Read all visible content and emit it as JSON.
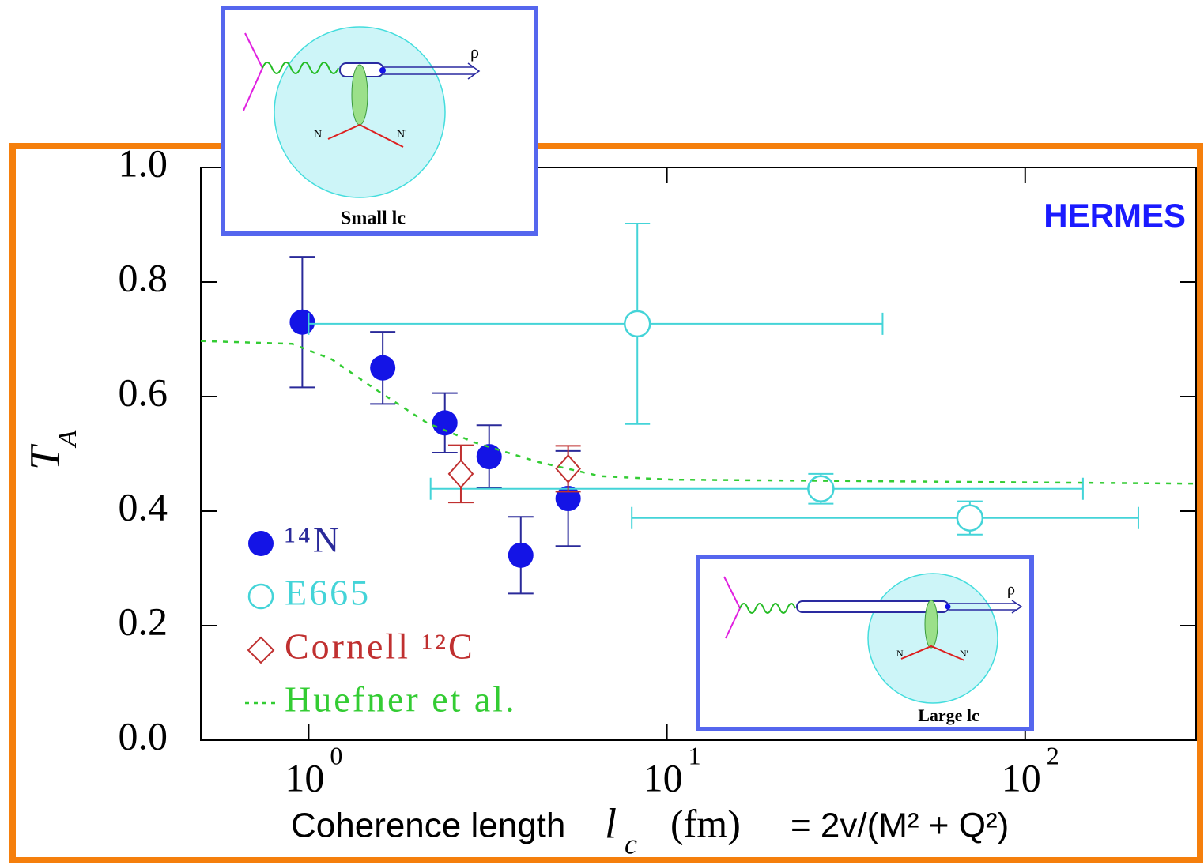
{
  "chart_data": {
    "type": "scatter",
    "xscale": "log",
    "xlim": [
      0.5,
      300
    ],
    "ylim": [
      0,
      1
    ],
    "xticks": [
      {
        "value": 1,
        "label": "10",
        "exponent": "0"
      },
      {
        "value": 10,
        "label": "10",
        "exponent": "1"
      },
      {
        "value": 100,
        "label": "10",
        "exponent": "2"
      }
    ],
    "yticks": [
      {
        "value": 0,
        "label": "0.0"
      },
      {
        "value": 0.2,
        "label": "0.2"
      },
      {
        "value": 0.4,
        "label": "0.4"
      },
      {
        "value": 0.6,
        "label": "0.6"
      },
      {
        "value": 0.8,
        "label": "0.8"
      },
      {
        "value": 1,
        "label": "1.0"
      }
    ],
    "ylabel": {
      "symbol": "T",
      "subscript": "A"
    },
    "xlabel": {
      "text": "Coherence length",
      "symbol": "l",
      "subscript": "c",
      "unit": "(fm)",
      "formula": "= 2v/(M² + Q²)"
    },
    "annotation": "HERMES",
    "series": [
      {
        "name": "¹⁴N",
        "color": "#1414e6",
        "marker": "filled-circle",
        "x": [
          0.96,
          1.61,
          2.4,
          3.19,
          3.91,
          5.3
        ],
        "values": [
          0.73,
          0.65,
          0.554,
          0.495,
          0.323,
          0.422
        ],
        "yerr": [
          0.114,
          0.063,
          0.052,
          0.055,
          0.067,
          0.083
        ]
      },
      {
        "name": "E665",
        "color": "#44d4d8",
        "marker": "open-circle",
        "x": [
          8.27,
          26.9,
          70.1
        ],
        "values": [
          0.727,
          0.439,
          0.388
        ],
        "yerr": [
          0.175,
          0.026,
          0.029
        ],
        "xmin": [
          1.0,
          2.19,
          7.98
        ],
        "xmax": [
          40,
          145,
          207
        ]
      },
      {
        "name": "Cornell ¹²C",
        "color": "#c03030",
        "marker": "open-diamond",
        "x": [
          2.66,
          5.3
        ],
        "values": [
          0.465,
          0.474
        ],
        "yerr": [
          0.05,
          0.04
        ]
      },
      {
        "name": "Huefner et al.",
        "color": "#33cc33",
        "marker": "dashed-line",
        "x": [
          0.5,
          0.9,
          1.16,
          1.5,
          2.14,
          2.9,
          4.35,
          6.52,
          10.3,
          300
        ],
        "values": [
          0.697,
          0.692,
          0.665,
          0.617,
          0.554,
          0.52,
          0.486,
          0.461,
          0.455,
          0.448
        ]
      }
    ]
  },
  "insets": [
    {
      "label": "Small lc",
      "particle": "ρ",
      "nucleon_in": "N",
      "nucleon_out": "N'"
    },
    {
      "label": "Large lc",
      "particle": "ρ",
      "nucleon_in": "N",
      "nucleon_out": "N'"
    }
  ]
}
